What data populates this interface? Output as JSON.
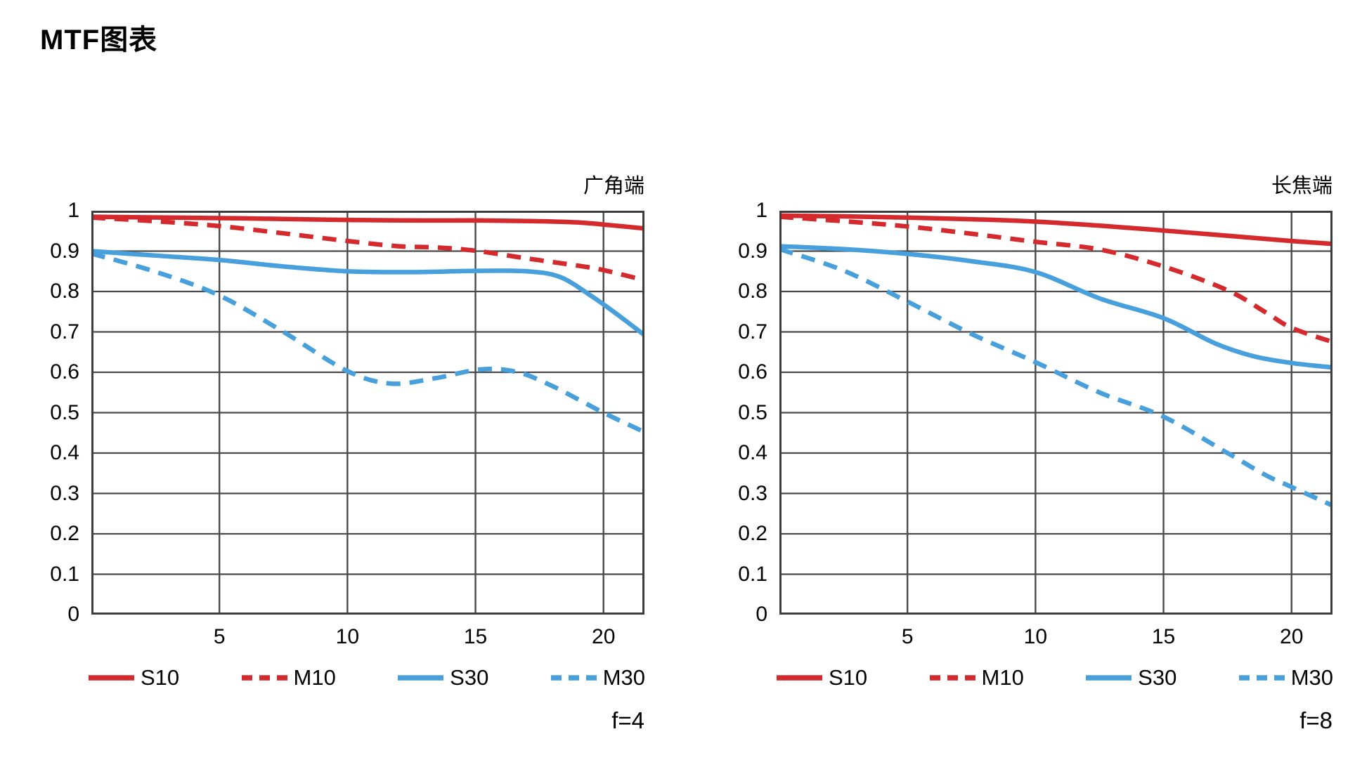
{
  "page_title": "MTF图表",
  "colors": {
    "red": "#d42a2e",
    "blue": "#47a0db",
    "grid": "#4a4a4a",
    "border": "#3d3d3d",
    "text": "#000000"
  },
  "axis": {
    "x_ticks": [
      5,
      10,
      15,
      20
    ],
    "x_tick_labels": [
      "5",
      "10",
      "15",
      "20"
    ],
    "y_tick_labels": [
      "0",
      "0.1",
      "0.2",
      "0.3",
      "0.4",
      "0.5",
      "0.6",
      "0.7",
      "0.8",
      "0.9",
      "1"
    ],
    "x_max": 21.6,
    "y_max": 1
  },
  "legend": [
    {
      "label": "S10",
      "color": "red",
      "style": "solid"
    },
    {
      "label": "M10",
      "color": "red",
      "style": "dashed"
    },
    {
      "label": "S30",
      "color": "blue",
      "style": "solid"
    },
    {
      "label": "M30",
      "color": "blue",
      "style": "dashed"
    }
  ],
  "chart_data": [
    {
      "type": "line",
      "title": "广角端",
      "f_label": "f=4",
      "xlabel": "",
      "ylabel": "",
      "xlim": [
        0,
        21.6
      ],
      "ylim": [
        0,
        1
      ],
      "grid": true,
      "legend_position": "bottom",
      "series": [
        {
          "name": "S10",
          "color": "red",
          "style": "solid",
          "points": [
            [
              0,
              0.985
            ],
            [
              3,
              0.983
            ],
            [
              6,
              0.981
            ],
            [
              9,
              0.978
            ],
            [
              12,
              0.976
            ],
            [
              15,
              0.976
            ],
            [
              17.5,
              0.974
            ],
            [
              19,
              0.971
            ],
            [
              20.3,
              0.964
            ],
            [
              21.6,
              0.956
            ]
          ]
        },
        {
          "name": "M10",
          "color": "red",
          "style": "dashed",
          "points": [
            [
              0,
              0.983
            ],
            [
              2.5,
              0.974
            ],
            [
              5,
              0.962
            ],
            [
              7.5,
              0.944
            ],
            [
              10,
              0.925
            ],
            [
              12,
              0.912
            ],
            [
              13.5,
              0.909
            ],
            [
              15,
              0.901
            ],
            [
              17,
              0.882
            ],
            [
              19,
              0.864
            ],
            [
              20,
              0.853
            ],
            [
              21.6,
              0.828
            ]
          ]
        },
        {
          "name": "S30",
          "color": "blue",
          "style": "solid",
          "points": [
            [
              0,
              0.9
            ],
            [
              2.5,
              0.889
            ],
            [
              5,
              0.878
            ],
            [
              7.5,
              0.862
            ],
            [
              10,
              0.85
            ],
            [
              12.5,
              0.848
            ],
            [
              15,
              0.851
            ],
            [
              17,
              0.85
            ],
            [
              18.3,
              0.836
            ],
            [
              19.5,
              0.79
            ],
            [
              20.5,
              0.745
            ],
            [
              21.6,
              0.692
            ]
          ]
        },
        {
          "name": "M30",
          "color": "blue",
          "style": "dashed",
          "points": [
            [
              0,
              0.894
            ],
            [
              2.5,
              0.849
            ],
            [
              5,
              0.79
            ],
            [
              7.5,
              0.7
            ],
            [
              10,
              0.603
            ],
            [
              11.7,
              0.572
            ],
            [
              13.4,
              0.585
            ],
            [
              15.2,
              0.607
            ],
            [
              16.6,
              0.601
            ],
            [
              18,
              0.566
            ],
            [
              20,
              0.5
            ],
            [
              21.6,
              0.452
            ]
          ]
        }
      ]
    },
    {
      "type": "line",
      "title": "长焦端",
      "f_label": "f=8",
      "xlabel": "",
      "ylabel": "",
      "xlim": [
        0,
        21.6
      ],
      "ylim": [
        0,
        1
      ],
      "grid": true,
      "legend_position": "bottom",
      "series": [
        {
          "name": "S10",
          "color": "red",
          "style": "solid",
          "points": [
            [
              0,
              0.988
            ],
            [
              2.5,
              0.986
            ],
            [
              5,
              0.983
            ],
            [
              7.5,
              0.979
            ],
            [
              10,
              0.973
            ],
            [
              12.5,
              0.963
            ],
            [
              15,
              0.951
            ],
            [
              17.5,
              0.938
            ],
            [
              20,
              0.925
            ],
            [
              21.6,
              0.918
            ]
          ]
        },
        {
          "name": "M10",
          "color": "red",
          "style": "dashed",
          "points": [
            [
              0,
              0.985
            ],
            [
              2.5,
              0.974
            ],
            [
              5,
              0.961
            ],
            [
              7.5,
              0.943
            ],
            [
              10,
              0.923
            ],
            [
              12.5,
              0.904
            ],
            [
              15,
              0.862
            ],
            [
              17.5,
              0.803
            ],
            [
              19,
              0.748
            ],
            [
              20,
              0.71
            ],
            [
              21.6,
              0.675
            ]
          ]
        },
        {
          "name": "S30",
          "color": "blue",
          "style": "solid",
          "points": [
            [
              0,
              0.912
            ],
            [
              2.5,
              0.905
            ],
            [
              5,
              0.893
            ],
            [
              7.5,
              0.875
            ],
            [
              10,
              0.848
            ],
            [
              12.5,
              0.783
            ],
            [
              15,
              0.734
            ],
            [
              17,
              0.672
            ],
            [
              18.5,
              0.64
            ],
            [
              20,
              0.623
            ],
            [
              21.6,
              0.612
            ]
          ]
        },
        {
          "name": "M30",
          "color": "blue",
          "style": "dashed",
          "points": [
            [
              0,
              0.905
            ],
            [
              2.5,
              0.852
            ],
            [
              5,
              0.775
            ],
            [
              7.5,
              0.695
            ],
            [
              10,
              0.625
            ],
            [
              12.5,
              0.55
            ],
            [
              15,
              0.49
            ],
            [
              17.5,
              0.4
            ],
            [
              19,
              0.345
            ],
            [
              20,
              0.316
            ],
            [
              21.6,
              0.27
            ]
          ]
        }
      ]
    }
  ]
}
